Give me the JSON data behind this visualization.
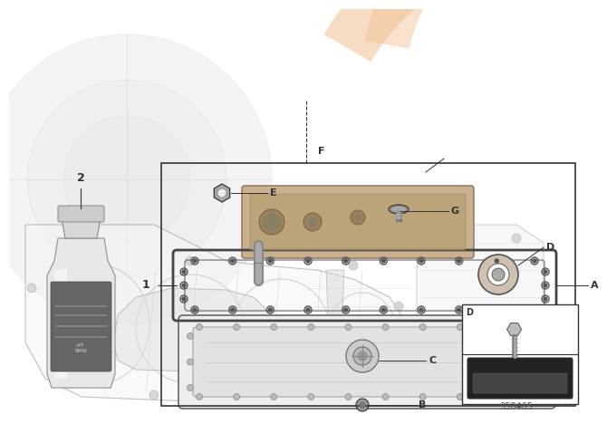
{
  "bg_color": "#ffffff",
  "part_number": "350465",
  "orange_color": "#f0c090",
  "gray_watermark": "#d8d8d8",
  "line_color": "#444444",
  "dark_line": "#333333",
  "gasket_dark": "#555555",
  "filter_color": "#c4a882",
  "filter_edge": "#8a7050",
  "pan_fill": "#e8e8e8",
  "label_fs": 8
}
